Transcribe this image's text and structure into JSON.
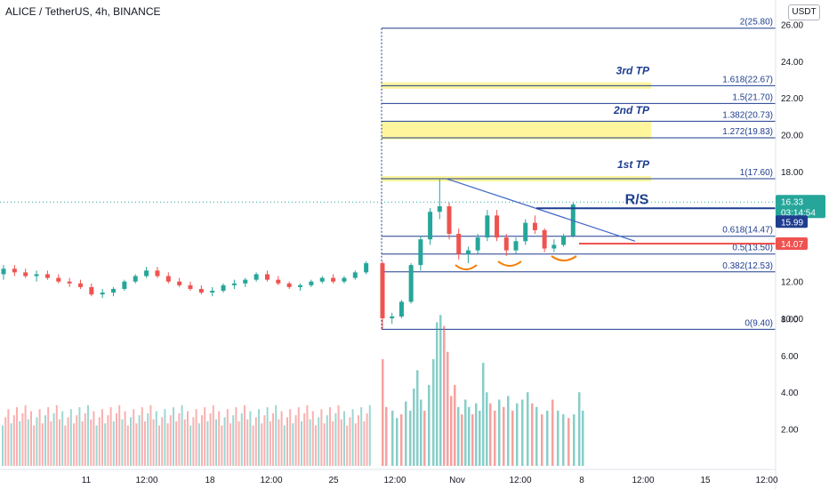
{
  "header": {
    "title": "ALICE / TetherUS, 4h, BINANCE",
    "currency": "USDT"
  },
  "chart_data": {
    "type": "candlestick",
    "symbol": "ALICE / TetherUS",
    "interval": "4h",
    "exchange": "BINANCE",
    "price_axis": {
      "ticks": [
        "26.00",
        "24.00",
        "22.00",
        "20.00",
        "18.00",
        "16.00",
        "12.00",
        "10.00"
      ],
      "ylim": [
        9.0,
        26.6
      ]
    },
    "volume_axis": {
      "ticks": [
        "8.00",
        "6.00",
        "4.00",
        "2.00"
      ]
    },
    "time_axis": {
      "ticks": [
        "11",
        "12:00",
        "18",
        "12:00",
        "25",
        "12:00",
        "Nov",
        "12:00",
        "8",
        "12:00",
        "15",
        "12:00"
      ]
    },
    "fib_levels": [
      {
        "label": "2(25.80)",
        "value": 25.8
      },
      {
        "label": "1.618(22.67)",
        "value": 22.67
      },
      {
        "label": "1.5(21.70)",
        "value": 21.7
      },
      {
        "label": "1.382(20.73)",
        "value": 20.73
      },
      {
        "label": "1.272(19.83)",
        "value": 19.83
      },
      {
        "label": "1(17.60)",
        "value": 17.6
      },
      {
        "label": "0.618(14.47)",
        "value": 14.47
      },
      {
        "label": "0.5(13.50)",
        "value": 13.5
      },
      {
        "label": "0.382(12.53)",
        "value": 12.53
      },
      {
        "label": "0(9.40)",
        "value": 9.4
      }
    ],
    "take_profit_zones": [
      {
        "label": "3rd TP",
        "low": 22.5,
        "high": 22.85
      },
      {
        "label": "2nd TP",
        "low": 19.75,
        "high": 20.7
      },
      {
        "label": "1st TP",
        "low": 17.45,
        "high": 17.75
      }
    ],
    "annotations": {
      "rs_label": "R/S",
      "rs_level": 15.99,
      "support_level": 14.07
    },
    "price_tags": [
      {
        "value": "16.33",
        "sub": "03:14:54",
        "color": "#26a69a"
      },
      {
        "value": "15.99",
        "color": "#1e3d8f"
      },
      {
        "value": "14.07",
        "color": "#ef5350"
      }
    ],
    "colors": {
      "up": "#26a69a",
      "down": "#ef5350",
      "fib": "#1e3d8f",
      "tp_zone": "#fff59d",
      "shoulders": "#f57c00"
    },
    "candles_approx": [
      [
        12.4,
        12.9,
        12.1,
        12.7
      ],
      [
        12.7,
        12.9,
        12.3,
        12.5
      ],
      [
        12.5,
        12.7,
        12.2,
        12.3
      ],
      [
        12.3,
        12.6,
        12.0,
        12.4
      ],
      [
        12.4,
        12.6,
        12.1,
        12.2
      ],
      [
        12.2,
        12.4,
        11.9,
        12.0
      ],
      [
        12.0,
        12.2,
        11.7,
        11.9
      ],
      [
        11.9,
        12.1,
        11.6,
        11.7
      ],
      [
        11.7,
        11.9,
        11.2,
        11.3
      ],
      [
        11.3,
        11.6,
        11.1,
        11.4
      ],
      [
        11.4,
        11.7,
        11.2,
        11.6
      ],
      [
        11.6,
        12.1,
        11.5,
        12.0
      ],
      [
        12.0,
        12.4,
        11.9,
        12.3
      ],
      [
        12.3,
        12.8,
        12.2,
        12.6
      ],
      [
        12.6,
        12.8,
        12.2,
        12.3
      ],
      [
        12.3,
        12.5,
        11.9,
        12.0
      ],
      [
        12.0,
        12.2,
        11.7,
        11.8
      ],
      [
        11.8,
        12.0,
        11.5,
        11.6
      ],
      [
        11.6,
        11.8,
        11.3,
        11.4
      ],
      [
        11.4,
        11.7,
        11.2,
        11.5
      ],
      [
        11.5,
        11.9,
        11.4,
        11.8
      ],
      [
        11.8,
        12.1,
        11.6,
        11.9
      ],
      [
        11.9,
        12.2,
        11.7,
        12.1
      ],
      [
        12.1,
        12.5,
        12.0,
        12.4
      ],
      [
        12.4,
        12.6,
        12.0,
        12.1
      ],
      [
        12.1,
        12.3,
        11.8,
        11.9
      ],
      [
        11.9,
        12.0,
        11.6,
        11.7
      ],
      [
        11.7,
        11.9,
        11.5,
        11.8
      ],
      [
        11.8,
        12.1,
        11.7,
        12.0
      ],
      [
        12.0,
        12.3,
        11.9,
        12.2
      ],
      [
        12.2,
        12.4,
        11.9,
        12.0
      ],
      [
        12.0,
        12.3,
        11.9,
        12.2
      ],
      [
        12.2,
        12.6,
        12.1,
        12.5
      ],
      [
        12.5,
        13.1,
        12.4,
        13.0
      ],
      [
        13.0,
        13.1,
        9.4,
        10.0
      ],
      [
        10.0,
        10.3,
        9.7,
        10.1
      ],
      [
        10.1,
        11.0,
        10.0,
        10.9
      ],
      [
        10.9,
        13.0,
        10.8,
        12.9
      ],
      [
        12.9,
        14.5,
        12.6,
        14.3
      ],
      [
        14.3,
        16.0,
        14.0,
        15.8
      ],
      [
        15.8,
        17.6,
        15.4,
        16.1
      ],
      [
        16.1,
        16.3,
        14.3,
        14.6
      ],
      [
        14.6,
        14.9,
        13.2,
        13.5
      ],
      [
        13.5,
        13.9,
        13.0,
        13.7
      ],
      [
        13.7,
        14.6,
        13.5,
        14.4
      ],
      [
        14.4,
        15.9,
        14.2,
        15.6
      ],
      [
        15.6,
        15.9,
        14.2,
        14.4
      ],
      [
        14.4,
        14.6,
        13.4,
        13.7
      ],
      [
        13.7,
        14.4,
        13.5,
        14.2
      ],
      [
        14.2,
        15.4,
        14.0,
        15.2
      ],
      [
        15.2,
        15.6,
        14.6,
        14.8
      ],
      [
        14.8,
        14.9,
        13.6,
        13.8
      ],
      [
        13.8,
        14.3,
        13.6,
        14.0
      ],
      [
        14.0,
        14.6,
        13.9,
        14.5
      ],
      [
        14.5,
        16.3,
        14.4,
        16.2
      ]
    ]
  }
}
